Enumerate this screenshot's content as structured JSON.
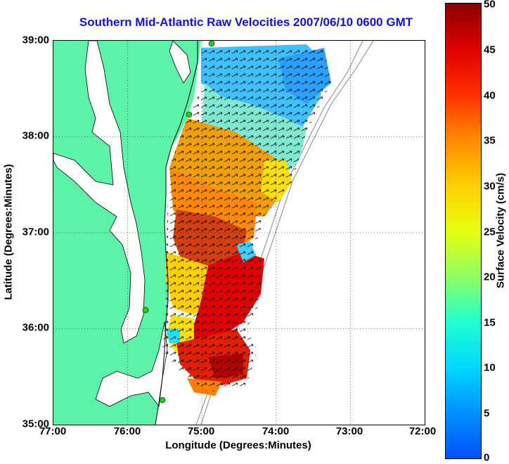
{
  "title": "Southern Mid-Atlantic Raw Velocities 2007/06/10 0600 GMT",
  "xlabel": "Longitude (Degrees:Minutes)",
  "ylabel": "Latitude (Degrees:Minutes)",
  "colorbar_label": "Surface Velocity (cm/s)",
  "x_ticks": [
    "77:00",
    "76:00",
    "75:00",
    "74:00",
    "73:00",
    "72:00"
  ],
  "y_ticks": [
    "39:00",
    "38:00",
    "37:00",
    "36:00",
    "35:00"
  ],
  "colorbar_ticks": [
    "50",
    "45",
    "40",
    "35",
    "30",
    "25",
    "20",
    "15",
    "10",
    "5",
    "0"
  ],
  "colors": {
    "land": "#5cf2a8",
    "title": "#1010e0",
    "station": "#20d020"
  },
  "map": {
    "lon_range": [
      -77,
      -72
    ],
    "lat_range": [
      35,
      39
    ],
    "colorbar_range": [
      0,
      50
    ],
    "grid": "dotted"
  }
}
